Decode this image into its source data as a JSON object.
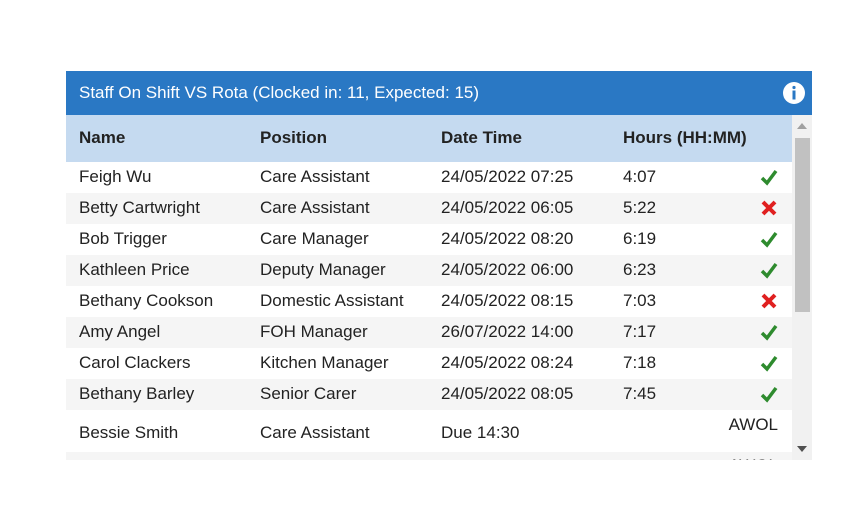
{
  "header": {
    "title": "Staff On Shift VS Rota (Clocked in: 11, Expected: 15)"
  },
  "table": {
    "columns": [
      "Name",
      "Position",
      "Date Time",
      "Hours (HH:MM)"
    ],
    "rows": [
      [
        "Feigh Wu",
        "Care Assistant",
        "24/05/2022 07:25",
        "4:07"
      ],
      [
        "Betty Cartwright",
        "Care Assistant",
        "24/05/2022 06:05",
        "5:22"
      ],
      [
        "Bob Trigger",
        "Care Manager",
        "24/05/2022 08:20",
        "6:19"
      ],
      [
        "Kathleen Price",
        "Deputy Manager",
        "24/05/2022 06:00",
        "6:23"
      ],
      [
        "Bethany Cookson",
        "Domestic Assistant",
        "24/05/2022 08:15",
        "7:03"
      ],
      [
        "Amy Angel",
        "FOH Manager",
        "26/07/2022 14:00",
        "7:17"
      ],
      [
        "Carol Clackers",
        "Kitchen Manager",
        "24/05/2022 08:24",
        "7:18"
      ],
      [
        "Bethany Barley",
        "Senior Carer",
        "24/05/2022 08:05",
        "7:45"
      ],
      [
        "Bessie Smith",
        "Care Assistant",
        "Due 14:30",
        "AWOL"
      ],
      [
        "AWOL"
      ]
    ]
  }
}
